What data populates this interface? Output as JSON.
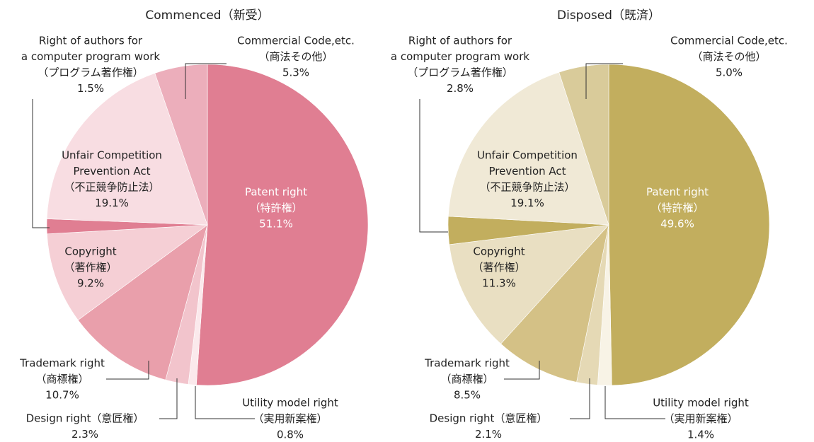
{
  "chart_data": [
    {
      "type": "pie",
      "title": "Commenced（新受）",
      "categories": [
        [
          "Patent right",
          "（特許権）"
        ],
        [
          "Utility model right",
          "（実用新案権）"
        ],
        [
          "Design right（意匠権）"
        ],
        [
          "Trademark right",
          "（商標権）"
        ],
        [
          "Copyright",
          "（著作権）"
        ],
        [
          "Right of authors for",
          "a computer program work",
          "（プログラム著作権）"
        ],
        [
          "Unfair Competition",
          "Prevention Act",
          "（不正競争防止法）"
        ],
        [
          "Commercial Code,etc.",
          "（商法その他）"
        ]
      ],
      "values": [
        51.1,
        0.8,
        2.3,
        10.7,
        9.2,
        1.5,
        19.1,
        5.3
      ],
      "value_labels": [
        "51.1%",
        "0.8%",
        "2.3%",
        "10.7%",
        "9.2%",
        "1.5%",
        "19.1%",
        "5.3%"
      ],
      "colors": [
        "#e07e92",
        "#fbe9ec",
        "#f2c4cc",
        "#e99fab",
        "#f5cfd5",
        "#e07e92",
        "#f8dde2",
        "#ecaebb"
      ]
    },
    {
      "type": "pie",
      "title": "Disposed（既済）",
      "categories": [
        [
          "Patent right",
          "（特許権）"
        ],
        [
          "Utility model right",
          "（実用新案権）"
        ],
        [
          "Design right（意匠権）"
        ],
        [
          "Trademark right",
          "（商標権）"
        ],
        [
          "Copyright",
          "（著作権）"
        ],
        [
          "Right of authors for",
          "a computer program work",
          "（プログラム著作権）"
        ],
        [
          "Unfair Competition",
          "Prevention Act",
          "（不正競争防止法）"
        ],
        [
          "Commercial Code,etc.",
          "（商法その他）"
        ]
      ],
      "values": [
        49.6,
        1.4,
        2.1,
        8.5,
        11.3,
        2.8,
        19.1,
        5.0
      ],
      "value_labels": [
        "49.6%",
        "1.4%",
        "2.1%",
        "8.5%",
        "11.3%",
        "2.8%",
        "19.1%",
        "5.0%"
      ],
      "colors": [
        "#c2ae5e",
        "#f8f3e6",
        "#e5d9b5",
        "#d4c186",
        "#e9dfc2",
        "#c2ae5e",
        "#f0e9d6",
        "#d9cb9a"
      ]
    }
  ]
}
